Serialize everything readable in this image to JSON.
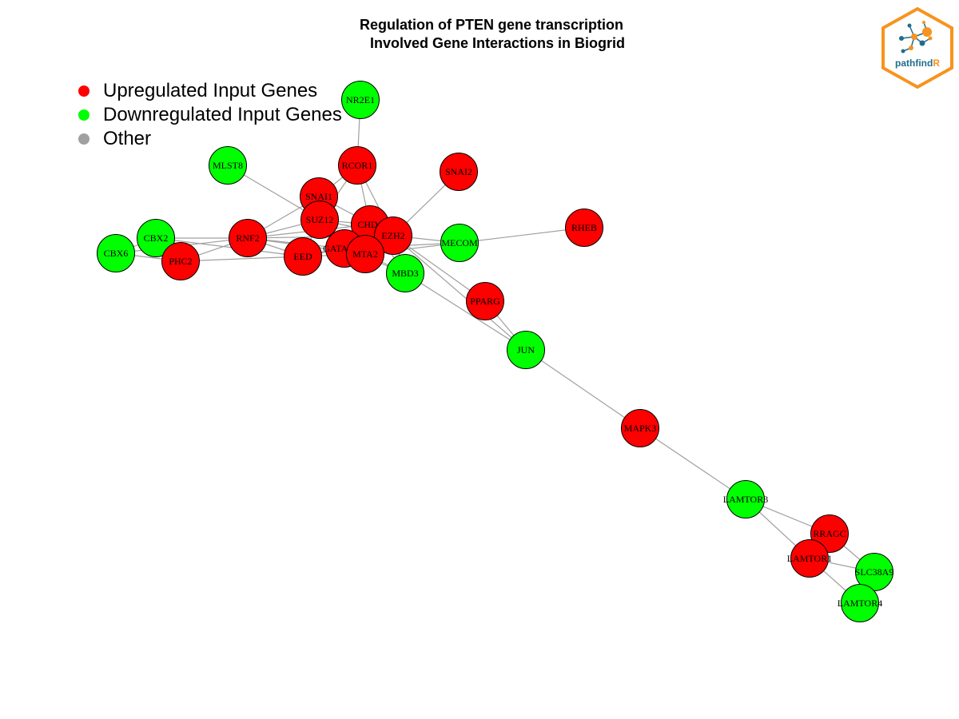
{
  "title": {
    "line1": "Regulation of PTEN gene transcription",
    "line2": "Involved Gene Interactions in Biogrid"
  },
  "legend": [
    {
      "label": "Upregulated Input Genes",
      "color": "#ff0000"
    },
    {
      "label": "Downregulated Input Genes",
      "color": "#00ff00"
    },
    {
      "label": "Other",
      "color": "#a0a0a0"
    }
  ],
  "colors": {
    "up": "#ff0000",
    "down": "#00ff00",
    "edge": "#a0a0a0",
    "logo_orange": "#f7931e",
    "logo_blue": "#1f6e8c"
  },
  "logo": {
    "text_main": "pathfind",
    "text_accent": "R",
    "icon": "network-hexagon-icon"
  },
  "nodes": [
    {
      "id": "NR2E1",
      "status": "down"
    },
    {
      "id": "MLST8",
      "status": "down"
    },
    {
      "id": "RCOR1",
      "status": "up"
    },
    {
      "id": "SNAI2",
      "status": "up"
    },
    {
      "id": "SNAI1",
      "status": "up"
    },
    {
      "id": "SUZ12",
      "status": "up"
    },
    {
      "id": "CHD4",
      "status": "up"
    },
    {
      "id": "EZH2",
      "status": "up"
    },
    {
      "id": "RHEB",
      "status": "up"
    },
    {
      "id": "MECOM",
      "status": "down"
    },
    {
      "id": "CBX2",
      "status": "down"
    },
    {
      "id": "RNF2",
      "status": "up"
    },
    {
      "id": "CBX6",
      "status": "down"
    },
    {
      "id": "PHC2",
      "status": "up"
    },
    {
      "id": "EED",
      "status": "up"
    },
    {
      "id": "GATAD2B",
      "status": "up"
    },
    {
      "id": "MTA2",
      "status": "up"
    },
    {
      "id": "MBD3",
      "status": "down"
    },
    {
      "id": "PPARG",
      "status": "up"
    },
    {
      "id": "JUN",
      "status": "down"
    },
    {
      "id": "MAPK3",
      "status": "up"
    },
    {
      "id": "LAMTOR3",
      "status": "down"
    },
    {
      "id": "RRAGC",
      "status": "up"
    },
    {
      "id": "LAMTOR1",
      "status": "up"
    },
    {
      "id": "SLC38A9",
      "status": "down"
    },
    {
      "id": "LAMTOR4",
      "status": "down"
    }
  ],
  "edges": [
    [
      "NR2E1",
      "RCOR1"
    ],
    [
      "MLST8",
      "SUZ12"
    ],
    [
      "RCOR1",
      "SNAI1"
    ],
    [
      "RCOR1",
      "CHD4"
    ],
    [
      "RCOR1",
      "SUZ12"
    ],
    [
      "RCOR1",
      "EZH2"
    ],
    [
      "SNAI2",
      "EZH2"
    ],
    [
      "SNAI1",
      "RNF2"
    ],
    [
      "SNAI1",
      "SUZ12"
    ],
    [
      "SNAI1",
      "EZH2"
    ],
    [
      "SUZ12",
      "RNF2"
    ],
    [
      "SUZ12",
      "EED"
    ],
    [
      "SUZ12",
      "EZH2"
    ],
    [
      "SUZ12",
      "CHD4"
    ],
    [
      "CHD4",
      "GATAD2B"
    ],
    [
      "CHD4",
      "MTA2"
    ],
    [
      "CHD4",
      "MBD3"
    ],
    [
      "CHD4",
      "EZH2"
    ],
    [
      "CHD4",
      "RNF2"
    ],
    [
      "EZH2",
      "EED"
    ],
    [
      "EZH2",
      "RNF2"
    ],
    [
      "EZH2",
      "MECOM"
    ],
    [
      "EZH2",
      "PPARG"
    ],
    [
      "EZH2",
      "JUN"
    ],
    [
      "EZH2",
      "MBD3"
    ],
    [
      "MECOM",
      "RHEB"
    ],
    [
      "MECOM",
      "MTA2"
    ],
    [
      "MECOM",
      "GATAD2B"
    ],
    [
      "CBX2",
      "RNF2"
    ],
    [
      "CBX2",
      "PHC2"
    ],
    [
      "CBX2",
      "CBX6"
    ],
    [
      "CBX2",
      "EED"
    ],
    [
      "CBX6",
      "RNF2"
    ],
    [
      "CBX6",
      "PHC2"
    ],
    [
      "PHC2",
      "RNF2"
    ],
    [
      "PHC2",
      "EED"
    ],
    [
      "RNF2",
      "EED"
    ],
    [
      "RNF2",
      "GATAD2B"
    ],
    [
      "RNF2",
      "MTA2"
    ],
    [
      "EED",
      "GATAD2B"
    ],
    [
      "EED",
      "MTA2"
    ],
    [
      "GATAD2B",
      "MTA2"
    ],
    [
      "GATAD2B",
      "MBD3"
    ],
    [
      "MTA2",
      "MBD3"
    ],
    [
      "MBD3",
      "JUN"
    ],
    [
      "PPARG",
      "JUN"
    ],
    [
      "JUN",
      "MAPK3"
    ],
    [
      "MAPK3",
      "LAMTOR3"
    ],
    [
      "LAMTOR3",
      "RRAGC"
    ],
    [
      "LAMTOR3",
      "LAMTOR1"
    ],
    [
      "RRAGC",
      "LAMTOR1"
    ],
    [
      "RRAGC",
      "SLC38A9"
    ],
    [
      "LAMTOR1",
      "SLC38A9"
    ],
    [
      "LAMTOR1",
      "LAMTOR4"
    ],
    [
      "SLC38A9",
      "LAMTOR4"
    ]
  ]
}
